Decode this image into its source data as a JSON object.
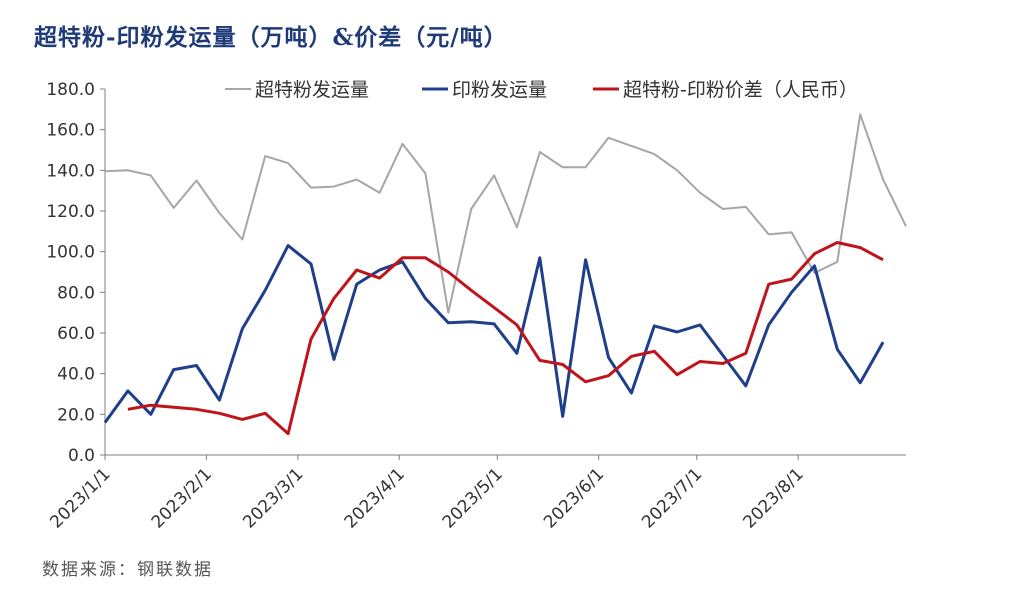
{
  "chart_data": {
    "type": "line",
    "title": "超特粉-印粉发运量（万吨）&价差（元/吨）",
    "source": "数据来源：钢联数据",
    "ylim": [
      0,
      180
    ],
    "yticks": [
      "0.0",
      "20.0",
      "40.0",
      "60.0",
      "80.0",
      "100.0",
      "120.0",
      "140.0",
      "160.0",
      "180.0"
    ],
    "xticks": [
      "2023/1/1",
      "2023/2/1",
      "2023/3/1",
      "2023/4/1",
      "2023/5/1",
      "2023/6/1",
      "2023/7/1",
      "2023/8/1"
    ],
    "legend_position": "top",
    "grid": false,
    "series": [
      {
        "name": "超特粉发运量",
        "color": "#a6a6a6",
        "points": [
          {
            "date": "2023-01-01",
            "value": 139.5
          },
          {
            "date": "2023-01-08",
            "value": 140
          },
          {
            "date": "2023-01-15",
            "value": 137.5
          },
          {
            "date": "2023-01-22",
            "value": 121.5
          },
          {
            "date": "2023-01-29",
            "value": 135
          },
          {
            "date": "2023-02-05",
            "value": 119
          },
          {
            "date": "2023-02-12",
            "value": 106
          },
          {
            "date": "2023-02-19",
            "value": 147
          },
          {
            "date": "2023-02-26",
            "value": 143.5
          },
          {
            "date": "2023-03-05",
            "value": 131.5
          },
          {
            "date": "2023-03-12",
            "value": 132
          },
          {
            "date": "2023-03-19",
            "value": 135.5
          },
          {
            "date": "2023-03-26",
            "value": 129
          },
          {
            "date": "2023-04-02",
            "value": 153
          },
          {
            "date": "2023-04-09",
            "value": 138.5
          },
          {
            "date": "2023-04-16",
            "value": 70
          },
          {
            "date": "2023-04-23",
            "value": 121
          },
          {
            "date": "2023-04-30",
            "value": 137.5
          },
          {
            "date": "2023-05-07",
            "value": 112
          },
          {
            "date": "2023-05-14",
            "value": 149
          },
          {
            "date": "2023-05-21",
            "value": 141.5
          },
          {
            "date": "2023-05-28",
            "value": 141.5
          },
          {
            "date": "2023-06-04",
            "value": 156
          },
          {
            "date": "2023-06-11",
            "value": 152
          },
          {
            "date": "2023-06-18",
            "value": 148
          },
          {
            "date": "2023-06-25",
            "value": 140
          },
          {
            "date": "2023-07-02",
            "value": 129
          },
          {
            "date": "2023-07-09",
            "value": 121
          },
          {
            "date": "2023-07-16",
            "value": 122
          },
          {
            "date": "2023-07-23",
            "value": 108.5
          },
          {
            "date": "2023-07-30",
            "value": 109.5
          },
          {
            "date": "2023-08-06",
            "value": 89.5
          },
          {
            "date": "2023-08-13",
            "value": 95
          },
          {
            "date": "2023-08-20",
            "value": 167.5
          },
          {
            "date": "2023-08-27",
            "value": 135.5
          },
          {
            "date": "2023-09-03",
            "value": 112.5
          }
        ]
      },
      {
        "name": "印粉发运量",
        "color": "#1f3f8a",
        "points": [
          {
            "date": "2023-01-01",
            "value": 16
          },
          {
            "date": "2023-01-08",
            "value": 31.5
          },
          {
            "date": "2023-01-15",
            "value": 20
          },
          {
            "date": "2023-01-22",
            "value": 42
          },
          {
            "date": "2023-01-29",
            "value": 44
          },
          {
            "date": "2023-02-05",
            "value": 27
          },
          {
            "date": "2023-02-12",
            "value": 62
          },
          {
            "date": "2023-02-19",
            "value": 81
          },
          {
            "date": "2023-02-26",
            "value": 103
          },
          {
            "date": "2023-03-05",
            "value": 94
          },
          {
            "date": "2023-03-12",
            "value": 47
          },
          {
            "date": "2023-03-19",
            "value": 84
          },
          {
            "date": "2023-03-26",
            "value": 91
          },
          {
            "date": "2023-04-02",
            "value": 95
          },
          {
            "date": "2023-04-09",
            "value": 77
          },
          {
            "date": "2023-04-16",
            "value": 65
          },
          {
            "date": "2023-04-23",
            "value": 65.5
          },
          {
            "date": "2023-04-30",
            "value": 64.5
          },
          {
            "date": "2023-05-07",
            "value": 50
          },
          {
            "date": "2023-05-14",
            "value": 97
          },
          {
            "date": "2023-05-21",
            "value": 19
          },
          {
            "date": "2023-05-28",
            "value": 96
          },
          {
            "date": "2023-06-04",
            "value": 48
          },
          {
            "date": "2023-06-11",
            "value": 30.5
          },
          {
            "date": "2023-06-18",
            "value": 63.5
          },
          {
            "date": "2023-06-25",
            "value": 60.5
          },
          {
            "date": "2023-07-02",
            "value": 64
          },
          {
            "date": "2023-07-09",
            "value": 49
          },
          {
            "date": "2023-07-16",
            "value": 34
          },
          {
            "date": "2023-07-23",
            "value": 64
          },
          {
            "date": "2023-07-30",
            "value": 80
          },
          {
            "date": "2023-08-06",
            "value": 93
          },
          {
            "date": "2023-08-13",
            "value": 52
          },
          {
            "date": "2023-08-20",
            "value": 35.5
          },
          {
            "date": "2023-08-27",
            "value": 55.5
          }
        ]
      },
      {
        "name": "超特粉-印粉价差（人民币）",
        "color": "#c0141b",
        "points": [
          {
            "date": "2023-01-08",
            "value": 22.5
          },
          {
            "date": "2023-01-15",
            "value": 24.5
          },
          {
            "date": "2023-01-22",
            "value": 23.5
          },
          {
            "date": "2023-01-29",
            "value": 22.5
          },
          {
            "date": "2023-02-05",
            "value": 20.5
          },
          {
            "date": "2023-02-12",
            "value": 17.5
          },
          {
            "date": "2023-02-19",
            "value": 20.5
          },
          {
            "date": "2023-02-26",
            "value": 10.5
          },
          {
            "date": "2023-03-05",
            "value": 57
          },
          {
            "date": "2023-03-12",
            "value": 77
          },
          {
            "date": "2023-03-19",
            "value": 91
          },
          {
            "date": "2023-03-26",
            "value": 87
          },
          {
            "date": "2023-04-02",
            "value": 97
          },
          {
            "date": "2023-04-09",
            "value": 97
          },
          {
            "date": "2023-04-16",
            "value": 90
          },
          {
            "date": "2023-04-23",
            "value": 81
          },
          {
            "date": "2023-04-30",
            "value": 72.5
          },
          {
            "date": "2023-05-07",
            "value": 64
          },
          {
            "date": "2023-05-14",
            "value": 46.5
          },
          {
            "date": "2023-05-21",
            "value": 44.5
          },
          {
            "date": "2023-05-28",
            "value": 36
          },
          {
            "date": "2023-06-04",
            "value": 39
          },
          {
            "date": "2023-06-11",
            "value": 48.5
          },
          {
            "date": "2023-06-18",
            "value": 51
          },
          {
            "date": "2023-06-25",
            "value": 39.5
          },
          {
            "date": "2023-07-02",
            "value": 46
          },
          {
            "date": "2023-07-09",
            "value": 45
          },
          {
            "date": "2023-07-16",
            "value": 50
          },
          {
            "date": "2023-07-23",
            "value": 84
          },
          {
            "date": "2023-07-30",
            "value": 86.5
          },
          {
            "date": "2023-08-06",
            "value": 99
          },
          {
            "date": "2023-08-13",
            "value": 104.5
          },
          {
            "date": "2023-08-20",
            "value": 102
          },
          {
            "date": "2023-08-27",
            "value": 96
          }
        ]
      }
    ]
  }
}
